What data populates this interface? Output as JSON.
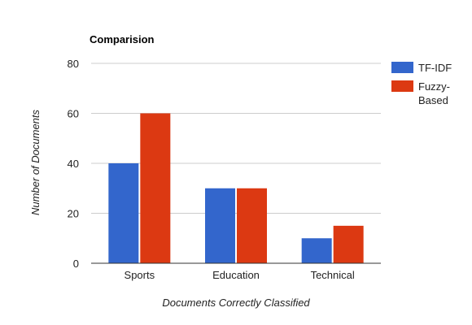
{
  "chart_data": {
    "type": "bar",
    "title": "Comparision",
    "xlabel": "Documents Correctly Classified",
    "ylabel": "Number of Documents",
    "categories": [
      "Sports",
      "Education",
      "Technical"
    ],
    "series": [
      {
        "name": "TF-IDF",
        "color": "#3366cc",
        "values": [
          40,
          30,
          10
        ]
      },
      {
        "name": "Fuzzy-Based",
        "color": "#dc3912",
        "values": [
          60,
          30,
          15
        ]
      }
    ],
    "ylim": [
      0,
      80
    ],
    "yticks": [
      0,
      20,
      40,
      60,
      80
    ],
    "grid": true,
    "legend_position": "right",
    "legend_labels": [
      {
        "series": 0,
        "lines": [
          "TF-IDF"
        ]
      },
      {
        "series": 1,
        "lines": [
          "Fuzzy-",
          "Based"
        ]
      }
    ]
  }
}
